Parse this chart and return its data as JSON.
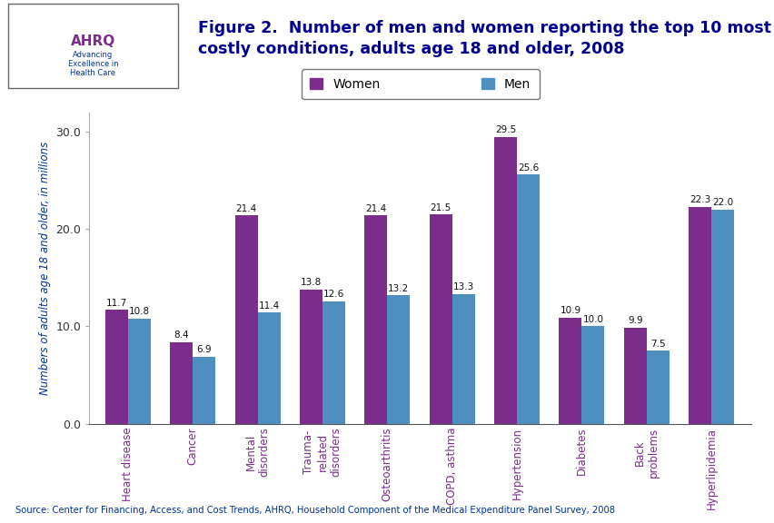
{
  "categories": [
    "Heart disease",
    "Cancer",
    "Mental\ndisorders",
    "Trauma-\nrelated\ndisorders",
    "Osteoarthritis",
    "COPD, asthma",
    "Hypertension",
    "Diabetes",
    "Back\nproblems",
    "Hyperlipidemia"
  ],
  "women_values": [
    11.7,
    8.4,
    21.4,
    13.8,
    21.4,
    21.5,
    29.5,
    10.9,
    9.9,
    22.3
  ],
  "men_values": [
    10.8,
    6.9,
    11.4,
    12.6,
    13.2,
    13.3,
    25.6,
    10.0,
    7.5,
    22.0
  ],
  "women_color": "#7B2D8B",
  "men_color": "#4E8FBF",
  "title_line1": "Figure 2.  Number of men and women reporting the top 10 most",
  "title_line2": "costly conditions, adults age 18 and older, 2008",
  "ylabel": "Numbers of adults age 18 and older, in millions",
  "ylim": [
    0,
    32
  ],
  "yticks": [
    0.0,
    10.0,
    20.0,
    30.0
  ],
  "ytick_labels": [
    "0.0",
    "10.0",
    "20.0",
    "30.0"
  ],
  "source_text": "Source: Center for Financing, Access, and Cost Trends, AHRQ, Household Component of the Medical Expenditure Panel Survey, 2008",
  "bar_width": 0.35,
  "fig_bg": "#FFFFFF",
  "header_bg": "#DAEEF3",
  "navy": "#00008B",
  "legend_women_label": "Women",
  "legend_men_label": "Men",
  "top_border_color": "#0000AA",
  "bottom_border_color": "#0000AA"
}
